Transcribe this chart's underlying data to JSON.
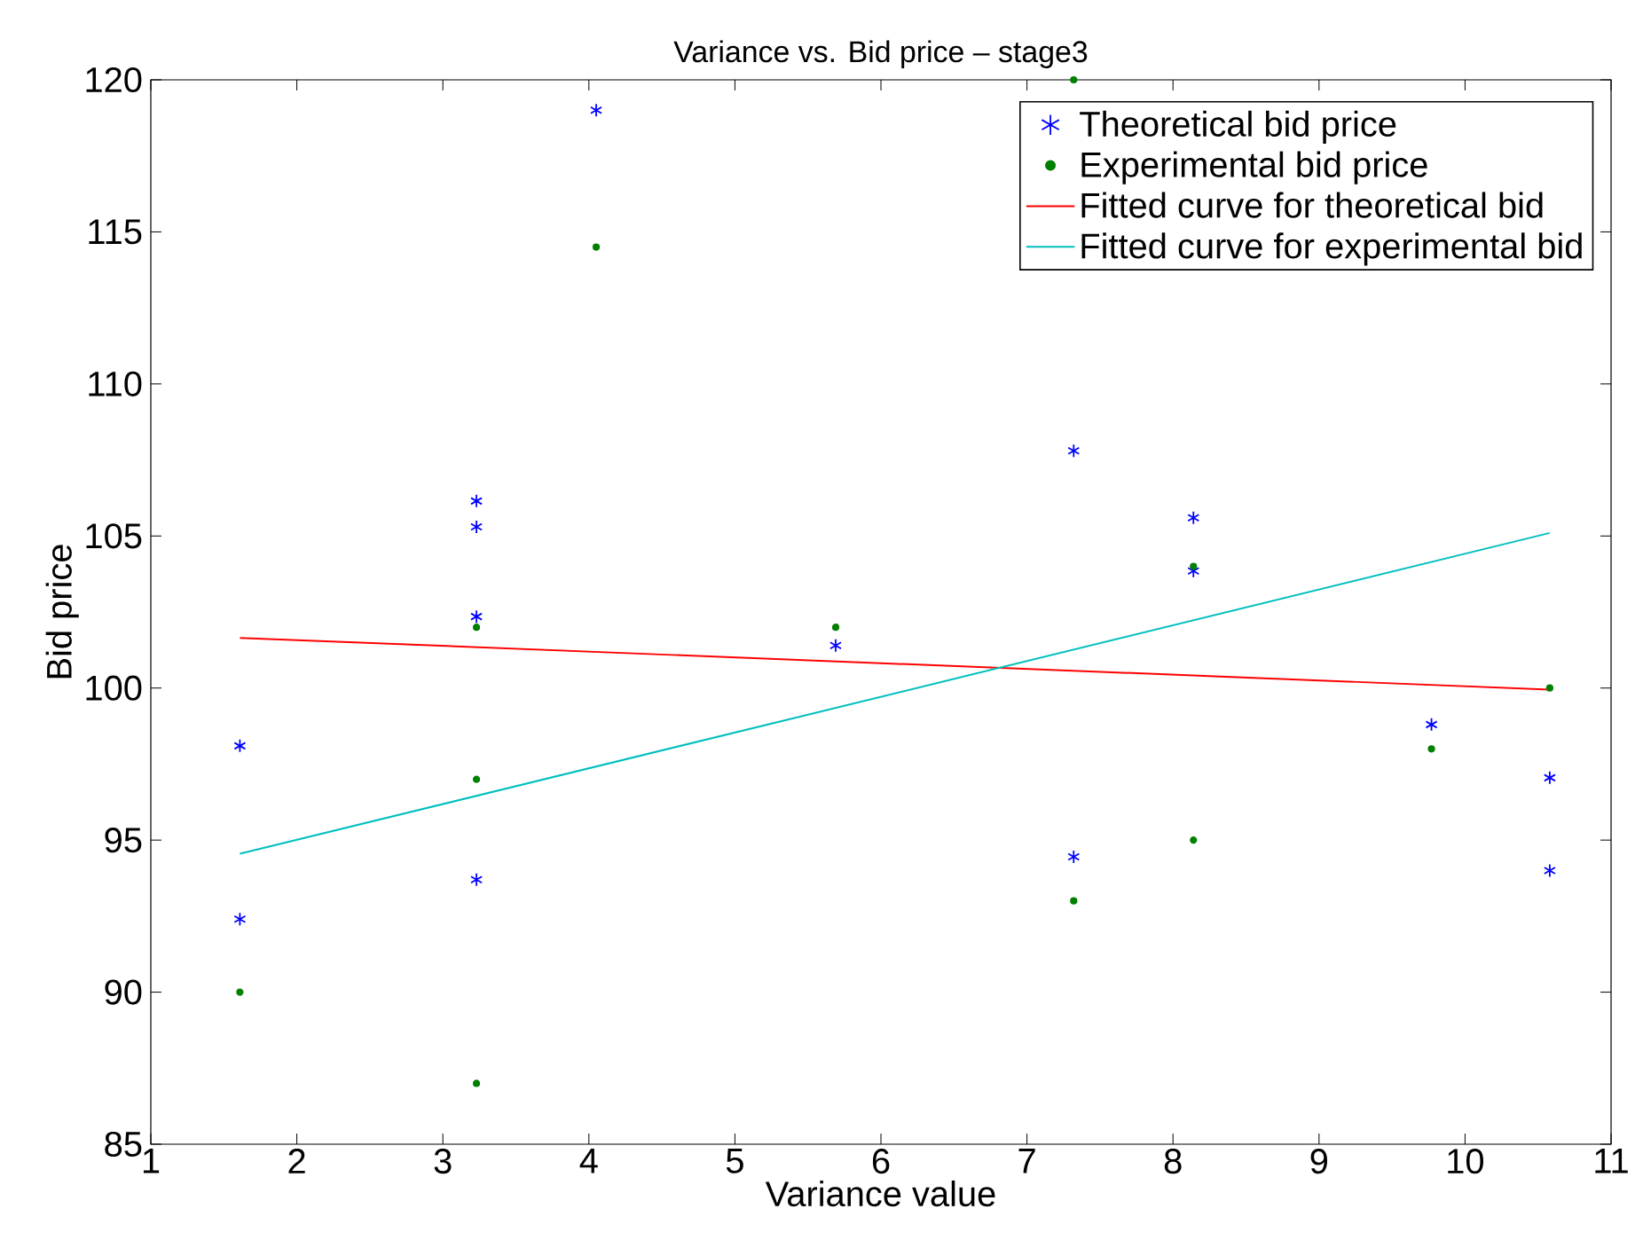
{
  "chart_data": {
    "type": "scatter",
    "title": "Variance vs. Bid price – stage3",
    "xlabel": "Variance value",
    "ylabel": "Bid price",
    "xlim": [
      1,
      11
    ],
    "xticks": [
      1,
      2,
      3,
      4,
      5,
      6,
      7,
      8,
      9,
      10,
      11
    ],
    "ylim": [
      85,
      120
    ],
    "yticks": [
      85,
      90,
      95,
      100,
      105,
      110,
      115,
      120
    ],
    "grid": false,
    "legend": "top right",
    "line_style": "solid",
    "series": [
      {
        "name": "Theoretical bid price",
        "type": "scatter",
        "marker": "cross",
        "color": "#0000ff",
        "x": [
          1.61,
          1.61,
          3.23,
          3.23,
          3.23,
          3.23,
          4.05,
          5.69,
          7.32,
          7.32,
          8.14,
          8.14,
          9.77,
          10.58,
          10.58
        ],
        "values": [
          98.1,
          92.4,
          106.15,
          105.3,
          102.35,
          93.7,
          119.0,
          101.4,
          107.8,
          94.45,
          105.6,
          103.85,
          98.8,
          97.05,
          94.0
        ]
      },
      {
        "name": "Experimental bid price",
        "type": "scatter",
        "marker": "circle",
        "color": "#008000",
        "x": [
          1.61,
          3.23,
          3.23,
          3.23,
          4.05,
          5.69,
          7.32,
          7.32,
          8.14,
          8.14,
          9.77,
          10.58
        ],
        "values": [
          90.0,
          102.0,
          97.0,
          87.0,
          114.5,
          102.0,
          120.0,
          93.0,
          104.0,
          95.0,
          98.0,
          100.0
        ]
      },
      {
        "name": "Fitted curve for theoretical bid",
        "type": "line",
        "marker": "none",
        "color": "#ff0000",
        "x": [
          1.61,
          10.58
        ],
        "values": [
          101.65,
          99.95
        ]
      },
      {
        "name": "Fitted curve for experimental bid",
        "type": "line",
        "marker": "none",
        "color": "#00bfbf",
        "x": [
          1.61,
          10.58
        ],
        "values": [
          94.55,
          105.1
        ]
      }
    ]
  }
}
